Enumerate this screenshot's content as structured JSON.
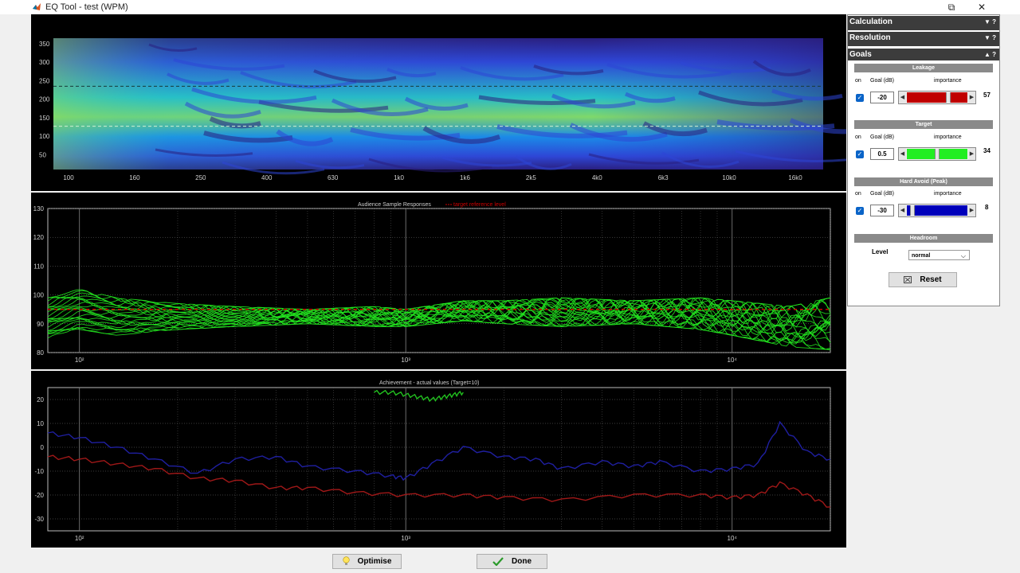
{
  "window": {
    "title": "EQ Tool - test (WPM)",
    "restore_glyph": "⧉",
    "close_glyph": "✕"
  },
  "heatmap": {
    "y_ticks": [
      "350",
      "300",
      "250",
      "200",
      "150",
      "100",
      "50"
    ],
    "x_ticks": [
      "100",
      "160",
      "250",
      "400",
      "630",
      "1k0",
      "1k6",
      "2k5",
      "4k0",
      "6k3",
      "10k0",
      "16k0"
    ],
    "colormap": [
      "#2a1f7f",
      "#2e46d6",
      "#1a8ce8",
      "#27c0c7",
      "#7fd86a",
      "#d6c842"
    ],
    "guide_levels": [
      235,
      127
    ]
  },
  "responses_chart": {
    "title": "Audience Sample Responses",
    "legend_target": "target reference level",
    "target_color": "#cc0000",
    "series_color": "#22e61f",
    "y_ticks": [
      "130",
      "120",
      "110",
      "100",
      "90",
      "80"
    ],
    "x_ticks": [
      "10²",
      "10³",
      "10⁴"
    ]
  },
  "achievement_chart": {
    "title": "Achievement - actual values (Target=10)",
    "y_ticks": [
      "20",
      "10",
      "0",
      "-10",
      "-20",
      "-30"
    ],
    "x_ticks": [
      "10²",
      "10³",
      "10⁴"
    ],
    "target_color": "#22c01f",
    "leakage_color": "#1f1fa0",
    "hard_avoid_color": "#a01818"
  },
  "chart_data": [
    {
      "type": "heatmap",
      "title": "",
      "x_tick_labels": [
        "100",
        "160",
        "250",
        "400",
        "630",
        "1k0",
        "1k6",
        "2k5",
        "4k0",
        "6k3",
        "10k0",
        "16k0"
      ],
      "y_tick_labels": [
        50,
        100,
        150,
        200,
        250,
        300,
        350
      ],
      "ylim": [
        10,
        365
      ],
      "reference_lines": [
        235,
        127
      ]
    },
    {
      "type": "line",
      "title": "Audience Sample Responses",
      "x_scale": "log",
      "xlim": [
        80,
        20000
      ],
      "ylim": [
        80,
        130
      ],
      "y_tick_labels": [
        80,
        90,
        100,
        110,
        120,
        130
      ],
      "x_tick_labels": [
        "10²",
        "10³",
        "10⁴"
      ],
      "target_reference_level": 95,
      "series_band": {
        "name": "",
        "x": [
          80,
          100,
          130,
          200,
          300,
          500,
          800,
          1000,
          1500,
          2000,
          3000,
          5000,
          8000,
          10000,
          15000,
          20000
        ],
        "upper": [
          99,
          102,
          99,
          97,
          96,
          95,
          96,
          95,
          98,
          98,
          99,
          98,
          99,
          98,
          96,
          99
        ],
        "lower": [
          85,
          88,
          86,
          88,
          89,
          90,
          89,
          89,
          91,
          90,
          89,
          90,
          88,
          86,
          82,
          81
        ]
      }
    },
    {
      "type": "line",
      "title": "Achievement - actual values (Target=10)",
      "x_scale": "log",
      "xlim": [
        80,
        20000
      ],
      "ylim": [
        -35,
        25
      ],
      "y_tick_labels": [
        -30,
        -20,
        -10,
        0,
        10,
        20
      ],
      "x_tick_labels": [
        "10²",
        "10³",
        "10⁴"
      ],
      "series": [
        {
          "name": "",
          "color": "target",
          "x": [
            800,
            900,
            1000,
            1100,
            1200,
            1300,
            1400,
            1500
          ],
          "y": [
            23,
            23,
            22,
            21,
            20,
            21,
            22,
            23
          ]
        },
        {
          "name": "",
          "color": "leakage",
          "x": [
            80,
            100,
            130,
            170,
            230,
            300,
            400,
            500,
            700,
            900,
            1000,
            1200,
            1500,
            2000,
            2500,
            3000,
            4000,
            5000,
            6000,
            8000,
            10000,
            12000,
            14000,
            17000,
            20000
          ],
          "y": [
            6,
            4,
            0,
            -5,
            -11,
            -5,
            -4,
            -8,
            -10,
            -12,
            -13,
            -7,
            0,
            -4,
            -5,
            -9,
            -6,
            -8,
            -6,
            -10,
            -9,
            -7,
            10,
            -2,
            -5
          ]
        },
        {
          "name": "",
          "color": "hard_avoid",
          "x": [
            80,
            100,
            130,
            170,
            230,
            300,
            400,
            500,
            700,
            1000,
            1500,
            2000,
            3000,
            5000,
            8000,
            10000,
            12000,
            14000,
            17000,
            20000
          ],
          "y": [
            -4,
            -5,
            -7,
            -9,
            -13,
            -14,
            -17,
            -17,
            -19,
            -20,
            -20,
            -21,
            -22,
            -20,
            -20,
            -21,
            -20,
            -15,
            -20,
            -25
          ]
        }
      ]
    }
  ],
  "sidebar": {
    "calculation": {
      "label": "Calculation",
      "ctl": "▼ ?"
    },
    "resolution": {
      "label": "Resolution",
      "ctl": "▼ ?"
    },
    "goals": {
      "label": "Goals",
      "ctl": "▲ ?"
    },
    "col_on": "on",
    "col_goal": "Goal (dB)",
    "col_importance": "importance",
    "leakage": {
      "label": "Leakage",
      "goal": "-20",
      "importance": "57",
      "importance_fraction": 0.7,
      "color": "#c00000"
    },
    "target": {
      "label": "Target",
      "goal": "0.5",
      "importance": "34",
      "importance_fraction": 0.5,
      "color": "#22ee22"
    },
    "hard_avoid": {
      "label": "Hard Avoid (Peak)",
      "goal": "-30",
      "importance": "8",
      "importance_fraction": 0.05,
      "color": "#0000bb"
    },
    "headroom": {
      "label": "Headroom",
      "level_label": "Level",
      "level_value": "normal",
      "chevron": "⌵"
    },
    "reset_label": "Reset"
  },
  "bottom": {
    "optimise_label": "Optimise",
    "done_label": "Done"
  }
}
